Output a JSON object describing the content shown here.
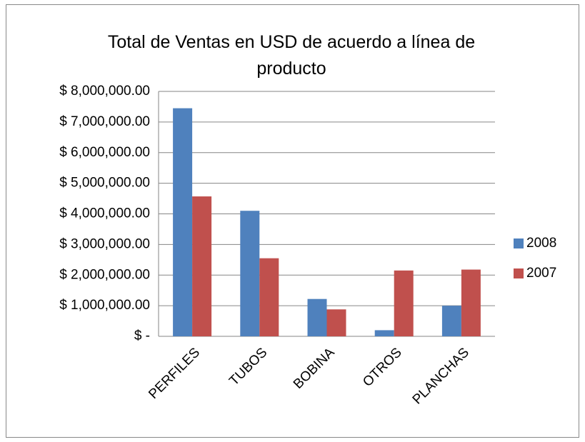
{
  "chart_data": {
    "type": "bar",
    "title": "Total de Ventas en USD de acuerdo a línea de producto",
    "categories": [
      "PERFILES",
      "TUBOS",
      "BOBINA",
      "OTROS",
      "PLANCHAS"
    ],
    "series": [
      {
        "name": "2008",
        "color": "#4f81bd",
        "values": [
          7450000,
          4100000,
          1220000,
          200000,
          1000000
        ]
      },
      {
        "name": "2007",
        "color": "#c0504d",
        "values": [
          4570000,
          2550000,
          880000,
          2150000,
          2180000
        ]
      }
    ],
    "ylim": [
      0,
      8000000
    ],
    "yticks": [
      {
        "value": 0,
        "label": "$ -"
      },
      {
        "value": 1000000,
        "label": "$ 1,000,000.00"
      },
      {
        "value": 2000000,
        "label": "$ 2,000,000.00"
      },
      {
        "value": 3000000,
        "label": "$ 3,000,000.00"
      },
      {
        "value": 4000000,
        "label": "$ 4,000,000.00"
      },
      {
        "value": 5000000,
        "label": "$ 5,000,000.00"
      },
      {
        "value": 6000000,
        "label": "$ 6,000,000.00"
      },
      {
        "value": 7000000,
        "label": "$ 7,000,000.00"
      },
      {
        "value": 8000000,
        "label": "$ 8,000,000.00"
      }
    ],
    "grid": true,
    "legend": "right"
  }
}
